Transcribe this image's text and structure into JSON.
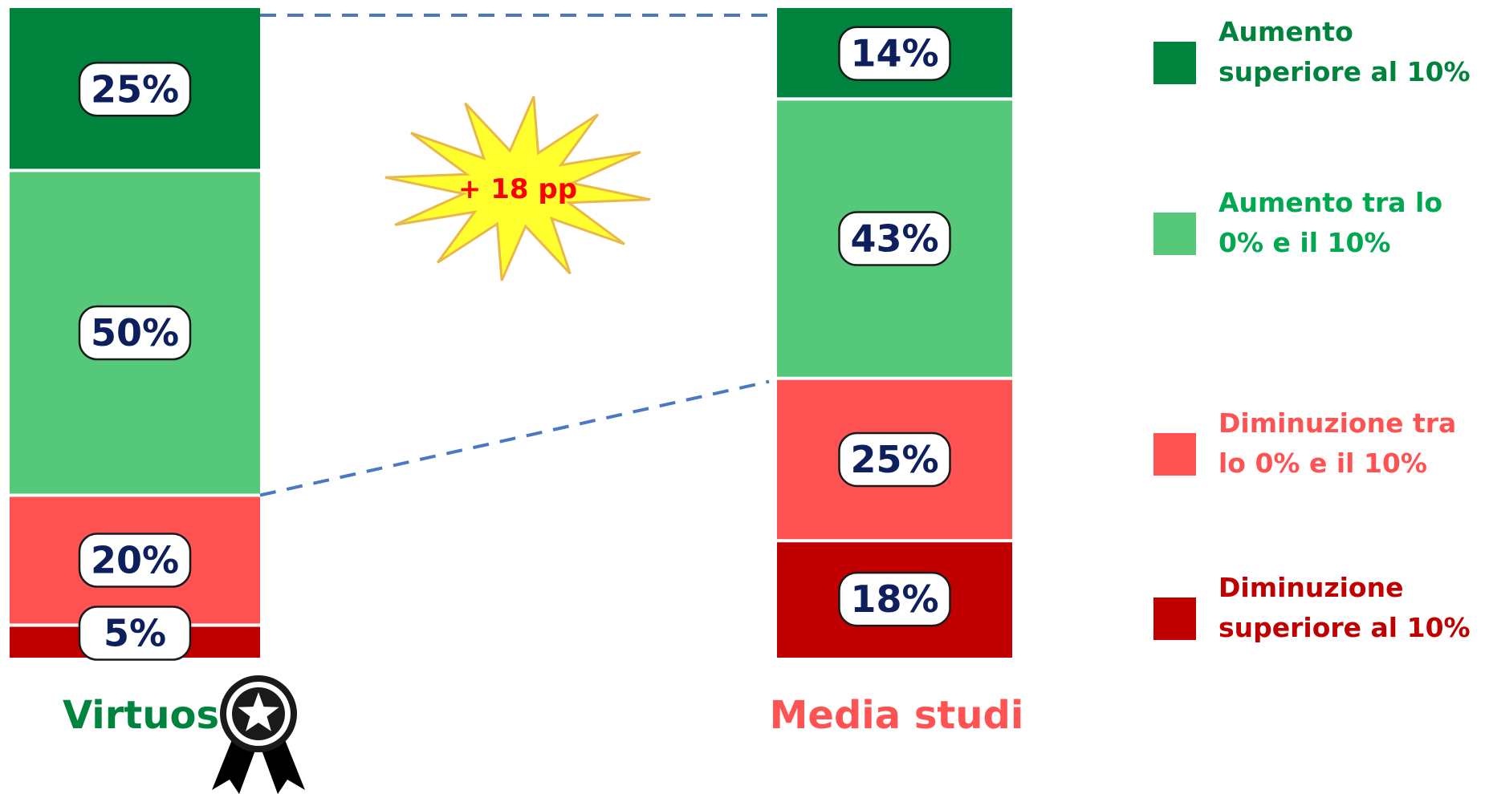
{
  "chart_data": {
    "type": "bar",
    "stacked": true,
    "percent": true,
    "categories": [
      "Virtuosi",
      "Media studi"
    ],
    "series": [
      {
        "name": "Aumento superiore al 10%",
        "color": "#00843d",
        "values": [
          25,
          14
        ]
      },
      {
        "name": "Aumento tra lo 0% e il 10%",
        "color": "#56c87a",
        "values": [
          50,
          43
        ]
      },
      {
        "name": "Diminuzione tra lo 0% e il 10%",
        "color": "#ff5353",
        "values": [
          20,
          25
        ]
      },
      {
        "name": "Diminuzione superiore al 10%",
        "color": "#c00000",
        "values": [
          5,
          18
        ]
      }
    ],
    "data_labels": [
      [
        "25%",
        "50%",
        "20%",
        "5%"
      ],
      [
        "14%",
        "43%",
        "25%",
        "18%"
      ]
    ],
    "category_colors": [
      "#00843d",
      "#ff5353"
    ],
    "legend": {
      "placement": "right",
      "entries": [
        {
          "lines": [
            "Aumento",
            "superiore al 10%"
          ],
          "color": "#00843d"
        },
        {
          "lines": [
            "Aumento tra lo",
            "0% e il 10%"
          ],
          "color": "#00a850"
        },
        {
          "lines": [
            "Diminuzione tra",
            "lo 0% e il 10%"
          ],
          "color": "#ff5353"
        },
        {
          "lines": [
            "Diminuzione",
            "superiore al 10%"
          ],
          "color": "#c00000"
        }
      ]
    },
    "annotation": {
      "text": "+ 18 pp",
      "color": "#ff0000",
      "fill": "#ffff2e"
    },
    "icon": "award-ribbon-icon",
    "connector_color": "#4a78c2"
  }
}
